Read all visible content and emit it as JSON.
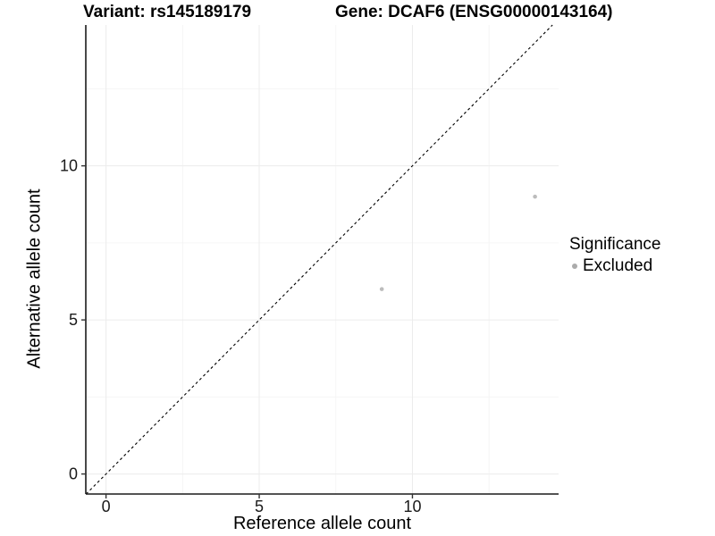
{
  "chart_data": {
    "type": "scatter",
    "title": {
      "left": "Variant: rs145189179",
      "right": "Gene: DCAF6 (ENSG00000143164)"
    },
    "xlabel": "Reference allele count",
    "ylabel": "Alternative allele count",
    "xlim": [
      -0.66,
      14.77
    ],
    "ylim": [
      -0.65,
      14.57
    ],
    "xticks": [
      0,
      5,
      10
    ],
    "yticks": [
      0,
      5,
      10
    ],
    "minor_xgrid": [
      2.5,
      7.5,
      12.5
    ],
    "minor_ygrid": [
      2.5,
      7.5,
      12.5
    ],
    "grid": "major+minor",
    "legend_position": "right",
    "series": [
      {
        "name": "Excluded",
        "color": "#bcbcbc",
        "marker": "circle",
        "points": [
          {
            "x": 9,
            "y": 6
          },
          {
            "x": 14,
            "y": 9
          }
        ]
      }
    ],
    "reference_line": {
      "type": "identity",
      "equation": "y = x",
      "style": "dashed",
      "color": "#000000"
    }
  },
  "legend": {
    "title": "Significance",
    "items": [
      {
        "label": "Excluded",
        "color": "#ababab",
        "marker": "circle"
      }
    ]
  },
  "style": {
    "background": "#ffffff",
    "axis_line_color": "#1a1a1a",
    "tick_color": "#333333",
    "tick_label_color": "#1a1a1a",
    "grid_major_color": "#ececec",
    "grid_minor_color": "#f3f3f3"
  }
}
